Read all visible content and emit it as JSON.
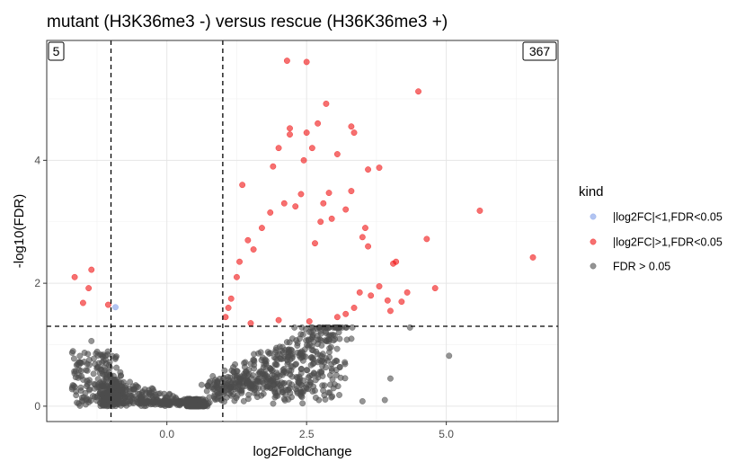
{
  "chart_data": {
    "type": "scatter",
    "title": "mutant (H3K36me3 -) versus rescue (H36K36me3 +)",
    "xlabel": "log2FoldChange",
    "ylabel": "-log10(FDR)",
    "xlim": [
      -2.15,
      7.0
    ],
    "ylim": [
      -0.25,
      5.95
    ],
    "x_ticks": [
      0,
      2.5,
      5
    ],
    "x_tick_labels": [
      "0.0",
      "2.5",
      "5.0"
    ],
    "y_ticks": [
      0,
      2,
      4
    ],
    "y_tick_labels": [
      "0",
      "2",
      "4"
    ],
    "grid": true,
    "threshold_lines": {
      "vertical": [
        -1,
        1
      ],
      "horizontal": 1.3
    },
    "count_labels": {
      "left": "5",
      "right": "367"
    },
    "legend": {
      "title": "kind",
      "position": "right",
      "entries": [
        {
          "label": "|log2FC|<1,FDR<0.05",
          "color": "#7f9ce8"
        },
        {
          "label": "|log2FC|>1,FDR<0.05",
          "color": "#f01010"
        },
        {
          "label": "FDR > 0.05",
          "color": "#4d4d4d"
        }
      ]
    },
    "series": [
      {
        "key": "small_sig",
        "points": [
          [
            -0.92,
            1.61
          ]
        ]
      },
      {
        "key": "large_sig",
        "points": [
          [
            -1.65,
            2.1
          ],
          [
            -1.35,
            2.22
          ],
          [
            -1.4,
            1.92
          ],
          [
            -1.5,
            1.68
          ],
          [
            -1.05,
            1.65
          ],
          [
            2.15,
            5.62
          ],
          [
            2.5,
            5.6
          ],
          [
            4.5,
            5.12
          ],
          [
            2.85,
            4.92
          ],
          [
            2.7,
            4.6
          ],
          [
            3.3,
            4.55
          ],
          [
            2.2,
            4.52
          ],
          [
            2.2,
            4.42
          ],
          [
            2.5,
            4.45
          ],
          [
            2.6,
            4.2
          ],
          [
            3.35,
            4.45
          ],
          [
            2.0,
            4.2
          ],
          [
            2.45,
            4.0
          ],
          [
            3.05,
            4.1
          ],
          [
            3.6,
            3.85
          ],
          [
            3.8,
            3.88
          ],
          [
            1.9,
            3.9
          ],
          [
            1.35,
            3.6
          ],
          [
            5.6,
            3.18
          ],
          [
            6.55,
            2.42
          ],
          [
            4.65,
            2.72
          ],
          [
            4.8,
            1.92
          ],
          [
            4.05,
            2.32
          ],
          [
            4.1,
            2.35
          ],
          [
            4.3,
            1.85
          ],
          [
            4.2,
            1.7
          ],
          [
            4.0,
            1.55
          ],
          [
            3.95,
            1.72
          ],
          [
            3.8,
            1.95
          ],
          [
            3.5,
            2.75
          ],
          [
            3.6,
            2.6
          ],
          [
            3.55,
            2.9
          ],
          [
            3.3,
            3.5
          ],
          [
            3.2,
            3.2
          ],
          [
            3.45,
            1.85
          ],
          [
            3.65,
            1.8
          ],
          [
            3.35,
            1.6
          ],
          [
            3.05,
            1.45
          ],
          [
            2.9,
            3.47
          ],
          [
            2.95,
            3.05
          ],
          [
            2.75,
            3.0
          ],
          [
            2.8,
            3.3
          ],
          [
            2.65,
            2.65
          ],
          [
            2.4,
            3.45
          ],
          [
            2.3,
            3.25
          ],
          [
            2.1,
            3.3
          ],
          [
            1.85,
            3.15
          ],
          [
            1.7,
            2.9
          ],
          [
            1.55,
            2.55
          ],
          [
            1.45,
            2.7
          ],
          [
            1.3,
            2.35
          ],
          [
            1.25,
            2.1
          ],
          [
            1.15,
            1.75
          ],
          [
            1.05,
            1.45
          ],
          [
            1.1,
            1.6
          ],
          [
            3.2,
            1.5
          ],
          [
            2.55,
            1.38
          ],
          [
            2.0,
            1.4
          ],
          [
            1.5,
            1.35
          ]
        ]
      },
      {
        "key": "not_sig",
        "points": [
          [
            4.35,
            1.28
          ],
          [
            -1.35,
            1.06
          ],
          [
            5.05,
            0.82
          ],
          [
            3.9,
            0.1
          ],
          [
            4.0,
            0.45
          ],
          [
            3.5,
            0.08
          ]
        ]
      }
    ]
  }
}
